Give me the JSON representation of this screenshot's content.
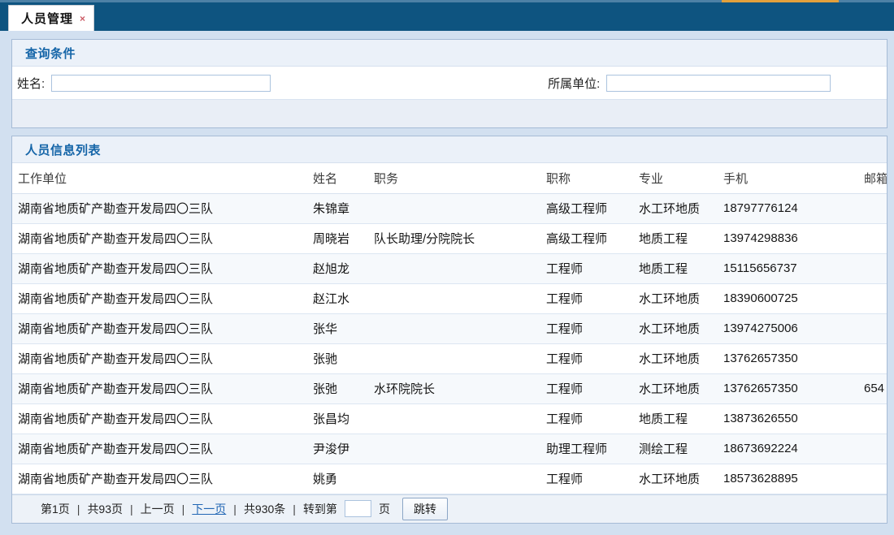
{
  "tab": {
    "label": "人员管理",
    "close": "×"
  },
  "query_panel": {
    "title": "查询条件",
    "fields": [
      {
        "label": "姓名:",
        "value": ""
      },
      {
        "label": "所属单位:",
        "value": ""
      }
    ]
  },
  "list_panel": {
    "title": "人员信息列表",
    "columns": [
      "工作单位",
      "姓名",
      "职务",
      "职称",
      "专业",
      "手机",
      "邮箱"
    ],
    "rows": [
      {
        "unit": "湖南省地质矿产勘查开发局四〇三队",
        "name": "朱锦章",
        "position": "",
        "title": "高级工程师",
        "major": "水工环地质",
        "phone": "18797776124",
        "email": ""
      },
      {
        "unit": "湖南省地质矿产勘查开发局四〇三队",
        "name": "周晓岩",
        "position": "队长助理/分院院长",
        "title": "高级工程师",
        "major": "地质工程",
        "phone": "13974298836",
        "email": ""
      },
      {
        "unit": "湖南省地质矿产勘查开发局四〇三队",
        "name": "赵旭龙",
        "position": "",
        "title": "工程师",
        "major": "地质工程",
        "phone": "15115656737",
        "email": ""
      },
      {
        "unit": "湖南省地质矿产勘查开发局四〇三队",
        "name": "赵江水",
        "position": "",
        "title": "工程师",
        "major": "水工环地质",
        "phone": "18390600725",
        "email": ""
      },
      {
        "unit": "湖南省地质矿产勘查开发局四〇三队",
        "name": "张华",
        "position": "",
        "title": "工程师",
        "major": "水工环地质",
        "phone": "13974275006",
        "email": ""
      },
      {
        "unit": "湖南省地质矿产勘查开发局四〇三队",
        "name": "张驰",
        "position": "",
        "title": "工程师",
        "major": "水工环地质",
        "phone": "13762657350",
        "email": ""
      },
      {
        "unit": "湖南省地质矿产勘查开发局四〇三队",
        "name": "张弛",
        "position": "水环院院长",
        "title": "工程师",
        "major": "水工环地质",
        "phone": "13762657350",
        "email": "654"
      },
      {
        "unit": "湖南省地质矿产勘查开发局四〇三队",
        "name": "张昌均",
        "position": "",
        "title": "工程师",
        "major": "地质工程",
        "phone": "13873626550",
        "email": ""
      },
      {
        "unit": "湖南省地质矿产勘查开发局四〇三队",
        "name": "尹浚伊",
        "position": "",
        "title": "助理工程师",
        "major": "测绘工程",
        "phone": "18673692224",
        "email": ""
      },
      {
        "unit": "湖南省地质矿产勘查开发局四〇三队",
        "name": "姚勇",
        "position": "",
        "title": "工程师",
        "major": "水工环地质",
        "phone": "18573628895",
        "email": ""
      }
    ],
    "pagination": {
      "current_page": "第1页",
      "total_pages": "共93页",
      "prev": "上一页",
      "next": "下一页",
      "total_records": "共930条",
      "goto_prefix": "转到第",
      "goto_value": "",
      "goto_suffix": "页",
      "jump": "跳转",
      "sep": "|"
    }
  },
  "colors": {
    "header_bar": "#0E5480",
    "top_strip": "#4D81A6",
    "top_strip_accent": "#E2A03C",
    "panel_title_text": "#1565A8",
    "link": "#2166B4",
    "page_background": "#D2E0F0"
  }
}
